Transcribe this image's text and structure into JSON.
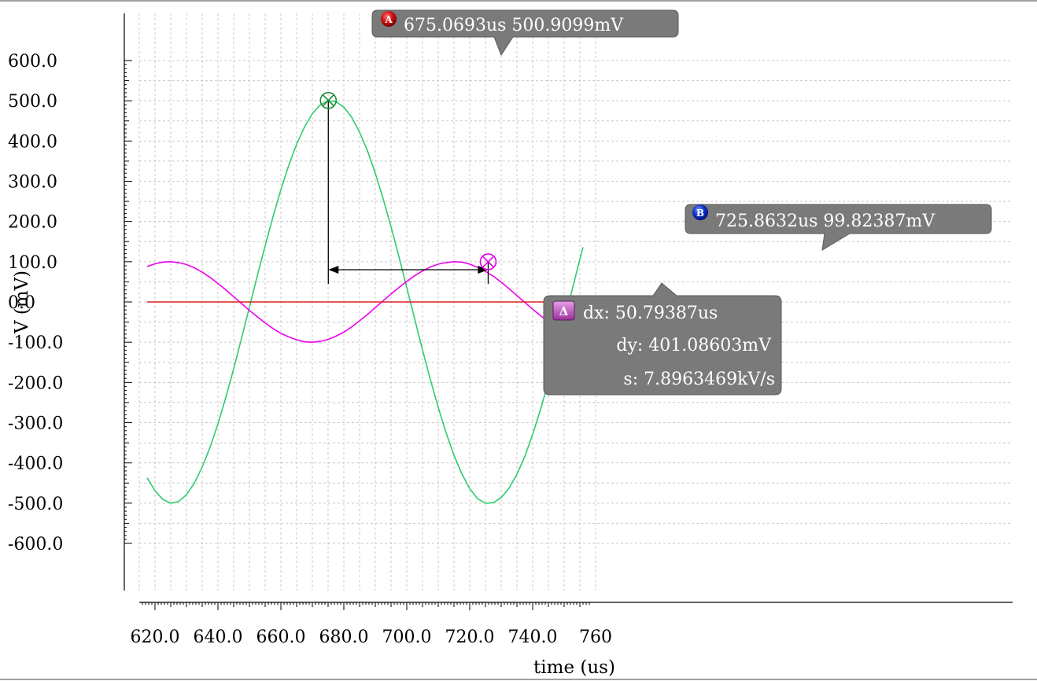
{
  "chart_data": {
    "type": "line",
    "title": "",
    "xlabel": "time (us)",
    "ylabel": "V (mV)",
    "xlim": [
      617.5,
      756.0
    ],
    "ylim": [
      -600,
      600
    ],
    "grid": true,
    "x_ticks": [
      "620.0",
      "640.0",
      "660.0",
      "680.0",
      "700.0",
      "720.0",
      "740.0",
      "760"
    ],
    "x_tick_values": [
      620,
      640,
      660,
      680,
      700,
      720,
      740,
      760
    ],
    "y_ticks": [
      "600.0",
      "500.0",
      "400.0",
      "300.0",
      "200.0",
      "100.0",
      "0.0",
      "-100.0",
      "-200.0",
      "-300.0",
      "-400.0",
      "-500.0",
      "-600.0"
    ],
    "y_tick_values": [
      600,
      500,
      400,
      300,
      200,
      100,
      0,
      -100,
      -200,
      -300,
      -400,
      -500,
      -600
    ],
    "series": [
      {
        "color": "#2ecc71",
        "x": [
          617.5,
          620,
          622.5,
          625,
          627.5,
          630,
          632.5,
          635,
          637.5,
          640,
          642.5,
          645,
          647.5,
          650,
          652.5,
          655,
          657.5,
          660,
          662.5,
          665,
          667.5,
          670,
          672.5,
          675,
          677.5,
          680,
          682.5,
          685,
          687.5,
          690,
          692.5,
          695,
          697.5,
          700,
          702.5,
          705,
          707.5,
          710,
          712.5,
          715,
          717.5,
          720,
          722.5,
          725,
          727.5,
          730,
          732.5,
          735,
          737.5,
          740,
          742.5,
          745,
          747.5,
          750,
          752.5,
          755,
          756
        ],
        "y": [
          -437,
          -469,
          -491,
          -500,
          -496,
          -479,
          -450,
          -410,
          -361,
          -303,
          -237,
          -166,
          -90,
          -13,
          65,
          140,
          212,
          279,
          340,
          392,
          435,
          468,
          490,
          500,
          498,
          484,
          459,
          422,
          376,
          320,
          256,
          187,
          113,
          36,
          -42,
          -119,
          -193,
          -262,
          -325,
          -381,
          -427,
          -464,
          -489,
          -500,
          -499,
          -486,
          -463,
          -428,
          -384,
          -329,
          -267,
          -199,
          -126,
          -49,
          29,
          106,
          136
        ]
      },
      {
        "color": "#ee00ee",
        "x": [
          617.5,
          620,
          622.5,
          625,
          627.5,
          630,
          632.5,
          635,
          637.5,
          640,
          642.5,
          645,
          647.5,
          650,
          652.5,
          655,
          657.5,
          660,
          662.5,
          665,
          667.5,
          670,
          672.5,
          675,
          677.5,
          680,
          682.5,
          685,
          687.5,
          690,
          692.5,
          695,
          697.5,
          700,
          702.5,
          705,
          707.5,
          710,
          712.5,
          715,
          717.5,
          720,
          722.5,
          725,
          727.5,
          730,
          732.5,
          735,
          737.5,
          740,
          742.5,
          745,
          747.5,
          750,
          752.5,
          755,
          756
        ],
        "y": [
          88,
          95,
          99,
          100,
          98,
          93,
          85,
          74,
          61,
          46,
          30,
          13,
          -4,
          -21,
          -37,
          -52,
          -66,
          -78,
          -87,
          -94,
          -99,
          -100,
          -98,
          -93,
          -85,
          -75,
          -62,
          -47,
          -31,
          -14,
          3,
          20,
          36,
          51,
          65,
          77,
          87,
          94,
          98,
          100,
          99,
          94,
          86,
          76,
          64,
          49,
          33,
          16,
          -1,
          -18,
          -34,
          -49,
          -63,
          -76,
          -86,
          -93,
          -35
        ]
      },
      {
        "color": "#e02020",
        "x": [
          617.5,
          756
        ],
        "y": [
          0,
          0
        ]
      }
    ],
    "markers": {
      "a": {
        "badge": "A",
        "label": "675.0693us 500.9099mV",
        "x": 675.0693,
        "y": 500.9099
      },
      "b": {
        "badge": "B",
        "label": "725.8632us 99.82387mV",
        "x": 725.8632,
        "y": 99.82387
      },
      "delta": {
        "badge": "Δ",
        "dx": "dx: 50.79387us",
        "dy": "dy: 401.08603mV",
        "s": "s: 7.8963469kV/s"
      }
    }
  }
}
